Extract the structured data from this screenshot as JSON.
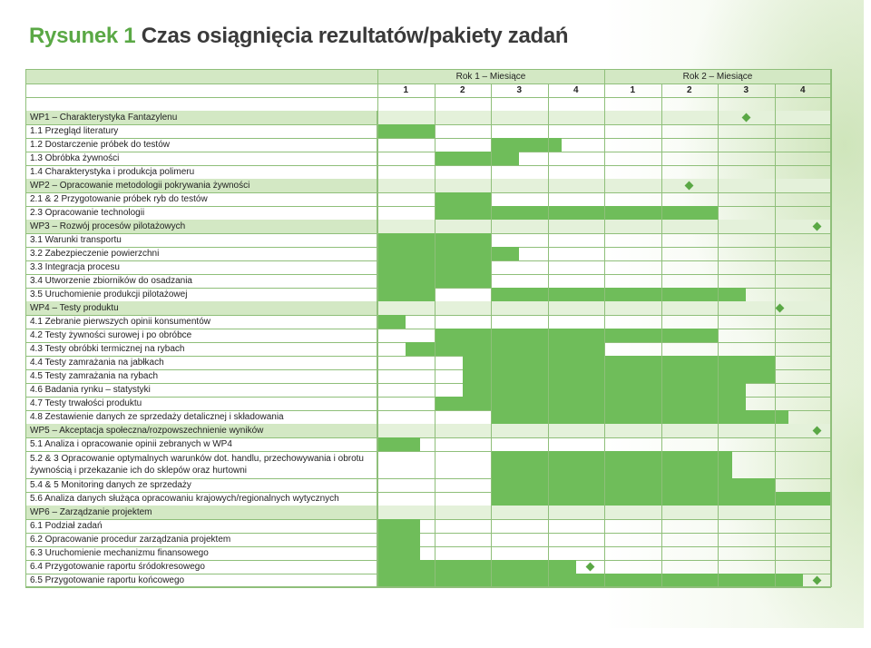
{
  "title": {
    "prefix": "Rysunek 1",
    "text": "Czas osiągnięcia rezultatów/pakiety zadań"
  },
  "colors": {
    "bar": "#6fbd5a",
    "header_bg": "#d3e8c4",
    "grid": "#8fbf7a",
    "title_accent": "#5aa845"
  },
  "years": [
    {
      "label": "Rok 1 – Miesiące",
      "months": [
        "1",
        "2",
        "3",
        "4"
      ]
    },
    {
      "label": "Rok 2 – Miesiące",
      "months": [
        "1",
        "2",
        "3",
        "4"
      ]
    }
  ],
  "rows": [
    {
      "label": "WP1 – Charakterystyka Fantazylenu",
      "header": true,
      "milestone": 6.5
    },
    {
      "label": "1.1   Przegląd literatury",
      "bars": [
        [
          0,
          1
        ]
      ]
    },
    {
      "label": "1.2   Dostarczenie próbek do testów",
      "bars": [
        [
          2,
          3.25
        ]
      ]
    },
    {
      "label": "1.3   Obróbka żywności",
      "bars": [
        [
          1,
          2.5
        ]
      ]
    },
    {
      "label": "1.4   Charakterystyka i produkcja polimeru",
      "bars": []
    },
    {
      "label": "WP2 – Opracowanie metodologii pokrywania żywności",
      "header": true,
      "milestone": 5.5
    },
    {
      "label": "2.1 & 2   Przygotowanie próbek ryb do testów",
      "bars": [
        [
          1,
          2
        ]
      ]
    },
    {
      "label": "2.3   Opracowanie technologii",
      "bars": [
        [
          1,
          6
        ]
      ]
    },
    {
      "label": "WP3 – Rozwój procesów pilotażowych",
      "header": true,
      "milestone": 7.75
    },
    {
      "label": "3.1   Warunki transportu",
      "bars": [
        [
          0,
          2
        ]
      ]
    },
    {
      "label": "3.2   Zabezpieczenie powierzchni",
      "bars": [
        [
          0,
          2.5
        ]
      ]
    },
    {
      "label": "3.3   Integracja procesu",
      "bars": [
        [
          0,
          2
        ]
      ]
    },
    {
      "label": "3.4   Utworzenie zbiorników do osadzania",
      "bars": [
        [
          0,
          2
        ]
      ]
    },
    {
      "label": "3.5   Uruchomienie produkcji pilotażowej",
      "bars": [
        [
          0,
          1
        ],
        [
          2,
          6.5
        ]
      ]
    },
    {
      "label": "WP4 – Testy produktu",
      "header": true,
      "milestone": 7.1
    },
    {
      "label": "4.1   Zebranie pierwszych opinii konsumentów",
      "bars": [
        [
          0,
          0.5
        ]
      ]
    },
    {
      "label": "4.2   Testy żywności surowej i po obróbce",
      "bars": [
        [
          1,
          6
        ]
      ]
    },
    {
      "label": "4.3   Testy obróbki termicznej na rybach",
      "bars": [
        [
          0.5,
          4
        ]
      ]
    },
    {
      "label": "4.4   Testy zamrażania na jabłkach",
      "bars": [
        [
          1.5,
          7
        ]
      ]
    },
    {
      "label": "4.5   Testy zamrażania na rybach",
      "bars": [
        [
          1.5,
          7
        ]
      ]
    },
    {
      "label": "4.6   Badania rynku – statystyki",
      "bars": [
        [
          1.5,
          6.5
        ]
      ]
    },
    {
      "label": "4.7   Testy trwałości produktu",
      "bars": [
        [
          1,
          6.5
        ]
      ]
    },
    {
      "label": "4.8   Zestawienie danych ze sprzedaży detalicznej i składowania",
      "bars": [
        [
          2,
          7.25
        ]
      ]
    },
    {
      "label": "WP5 – Akceptacja społeczna/rozpowszechnienie wyników",
      "header": true,
      "milestone": 7.75
    },
    {
      "label": "5.1   Analiza i opracowanie opinii zebranych w WP4",
      "bars": [
        [
          0,
          0.75
        ]
      ]
    },
    {
      "label": "5.2 & 3   Opracowanie optymalnych warunków dot. handlu, przechowywania i obrotu żywnością i przekazanie ich do sklepów oraz hurtowni",
      "two": true,
      "bars": [
        [
          2,
          6.25
        ]
      ]
    },
    {
      "label": "5.4 & 5   Monitoring danych ze sprzedaży",
      "bars": [
        [
          2,
          7
        ]
      ]
    },
    {
      "label": "5.6   Analiza danych służąca opracowaniu krajowych/regionalnych wytycznych",
      "bars": [
        [
          2,
          8
        ]
      ]
    },
    {
      "label": "WP6 – Zarządzanie projektem",
      "header": true
    },
    {
      "label": "6.1   Podział zadań",
      "bars": [
        [
          0,
          0.75
        ]
      ]
    },
    {
      "label": "6.2   Opracowanie procedur zarządzania projektem",
      "bars": [
        [
          0,
          0.75
        ]
      ]
    },
    {
      "label": "6.3   Uruchomienie mechanizmu finansowego",
      "bars": [
        [
          0,
          0.75
        ]
      ]
    },
    {
      "label": "6.4   Przygotowanie raportu śródokresowego",
      "bars": [
        [
          0,
          3.5
        ]
      ],
      "milestone": 3.75
    },
    {
      "label": "6.5   Przygotowanie raportu końcowego",
      "bars": [
        [
          0,
          7.5
        ]
      ],
      "milestone": 7.75
    }
  ]
}
